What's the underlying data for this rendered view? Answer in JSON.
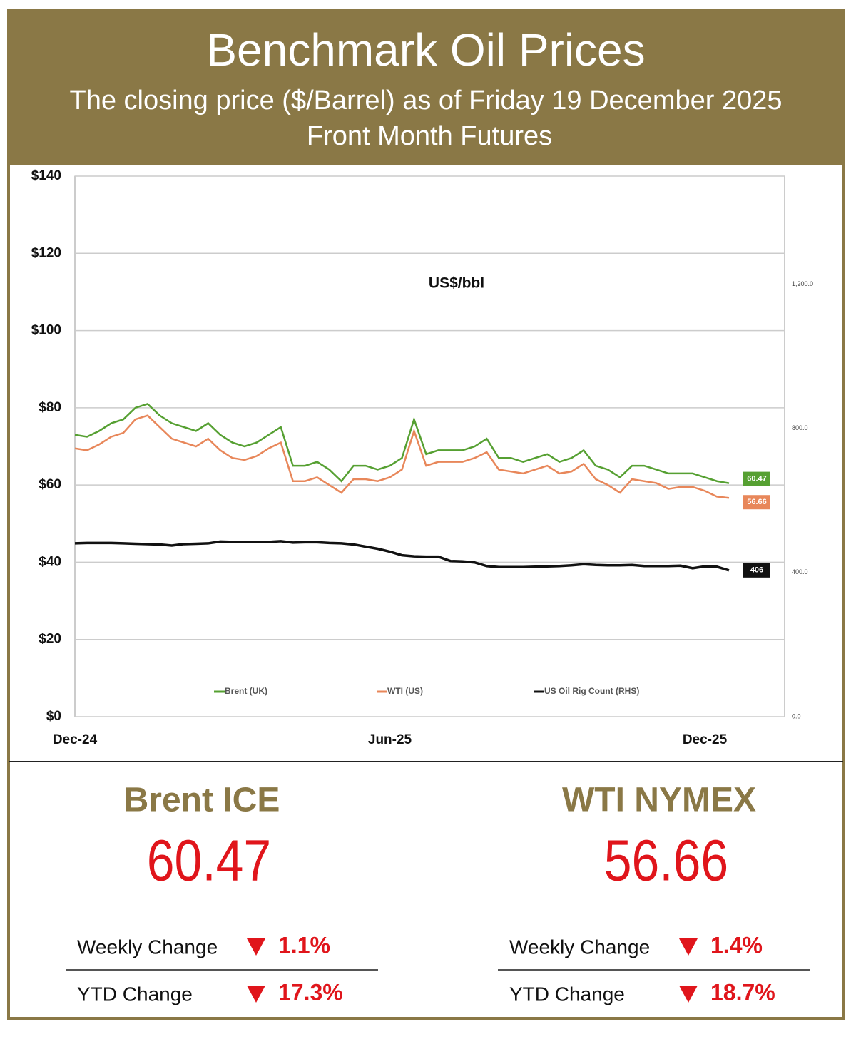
{
  "header": {
    "title": "Benchmark Oil Prices",
    "subtitle": "The closing price ($/Barrel) as of Friday 19 December 2025",
    "note": "Front Month  Futures"
  },
  "chart_data": {
    "type": "line",
    "annotation": "US$/bbl",
    "categories": [
      "Dec-24",
      null,
      null,
      null,
      null,
      null,
      null,
      null,
      null,
      null,
      null,
      null,
      null,
      null,
      null,
      null,
      null,
      null,
      null,
      null,
      null,
      null,
      null,
      null,
      null,
      null,
      "Jun-25",
      null,
      null,
      null,
      null,
      null,
      null,
      null,
      null,
      null,
      null,
      null,
      null,
      null,
      null,
      null,
      null,
      null,
      null,
      null,
      null,
      null,
      null,
      null,
      null,
      null,
      "Dec-25",
      null,
      null
    ],
    "series": [
      {
        "name": "Brent (UK)",
        "color": "#56a032",
        "values": [
          73,
          72.5,
          74,
          76,
          77,
          80,
          81,
          78,
          76,
          75,
          74,
          76,
          73,
          71,
          70,
          71,
          73,
          75,
          65,
          65,
          66,
          64,
          61,
          65,
          65,
          64,
          65,
          67,
          77,
          68,
          69,
          69,
          69,
          70,
          72,
          67,
          67,
          66,
          67,
          68,
          66,
          67,
          69,
          65,
          64,
          62,
          65,
          65,
          64,
          63,
          63,
          63,
          62,
          61,
          60.47
        ]
      },
      {
        "name": "WTI (US)",
        "color": "#e8875a",
        "values": [
          69.5,
          69,
          70.5,
          72.5,
          73.5,
          77,
          78,
          75,
          72,
          71,
          70,
          72,
          69,
          67,
          66.5,
          67.5,
          69.5,
          71,
          61,
          61,
          62,
          60,
          58,
          61.5,
          61.5,
          61,
          62,
          64,
          74,
          65,
          66,
          66,
          66,
          67,
          68.5,
          64,
          63.5,
          63,
          64,
          65,
          63,
          63.5,
          65.5,
          61.5,
          60,
          58,
          61.5,
          61,
          60.5,
          59,
          59.5,
          59.5,
          58.5,
          57,
          56.66
        ]
      },
      {
        "name": "US Oil Rig Count (RHS)",
        "color": "#111111",
        "axis": "y2",
        "values": [
          481,
          482,
          482,
          482,
          481,
          480,
          479,
          478,
          475,
          479,
          480,
          481,
          486,
          485,
          485,
          485,
          485,
          487,
          483,
          484,
          484,
          482,
          481,
          478,
          472,
          466,
          458,
          448,
          445,
          444,
          444,
          432,
          431,
          428,
          418,
          415,
          415,
          415,
          416,
          417,
          418,
          420,
          423,
          421,
          420,
          420,
          421,
          418,
          418,
          418,
          419,
          412,
          417,
          416,
          406
        ]
      }
    ],
    "ylim": [
      0,
      140
    ],
    "yticks": [
      {
        "value": 0,
        "label": "$0"
      },
      {
        "value": 20,
        "label": "$20"
      },
      {
        "value": 40,
        "label": "$40"
      },
      {
        "value": 60,
        "label": "$60"
      },
      {
        "value": 80,
        "label": "$80"
      },
      {
        "value": 100,
        "label": "$100"
      },
      {
        "value": 120,
        "label": "$120"
      },
      {
        "value": 140,
        "label": "$140"
      }
    ],
    "y2lim": [
      0,
      1500
    ],
    "y2ticks": [
      {
        "value": 0,
        "label": "0.0"
      },
      {
        "value": 400,
        "label": "400.0"
      },
      {
        "value": 800,
        "label": "800.0"
      },
      {
        "value": 1200,
        "label": "1,200.0"
      }
    ],
    "grid": true
  },
  "panels": [
    {
      "name": "Brent ICE",
      "price": "60.47",
      "rows": [
        {
          "label": "Weekly Change",
          "change": "1.1%"
        },
        {
          "label": "YTD Change",
          "change": "17.3%"
        }
      ]
    },
    {
      "name": "WTI NYMEX",
      "price": "56.66",
      "rows": [
        {
          "label": "Weekly Change",
          "change": "1.4%"
        },
        {
          "label": "YTD Change",
          "change": "18.7%"
        }
      ]
    }
  ]
}
